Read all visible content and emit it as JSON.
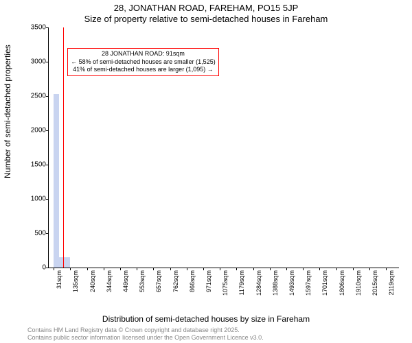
{
  "title_line1": "28, JONATHAN ROAD, FAREHAM, PO15 5JP",
  "title_line2": "Size of property relative to semi-detached houses in Fareham",
  "ylabel": "Number of semi-detached properties",
  "xlabel": "Distribution of semi-detached houses by size in Fareham",
  "footer_line1": "Contains HM Land Registry data © Crown copyright and database right 2025.",
  "footer_line2": "Contains public sector information licensed under the Open Government Licence v3.0.",
  "chart": {
    "type": "bar",
    "ylim": [
      0,
      3500
    ],
    "yticks": [
      0,
      500,
      1000,
      1500,
      2000,
      2500,
      3000,
      3500
    ],
    "xticks": [
      {
        "x": 31,
        "label": "31sqm"
      },
      {
        "x": 135,
        "label": "135sqm"
      },
      {
        "x": 240,
        "label": "240sqm"
      },
      {
        "x": 344,
        "label": "344sqm"
      },
      {
        "x": 449,
        "label": "449sqm"
      },
      {
        "x": 553,
        "label": "553sqm"
      },
      {
        "x": 657,
        "label": "657sqm"
      },
      {
        "x": 762,
        "label": "762sqm"
      },
      {
        "x": 866,
        "label": "866sqm"
      },
      {
        "x": 971,
        "label": "971sqm"
      },
      {
        "x": 1075,
        "label": "1075sqm"
      },
      {
        "x": 1179,
        "label": "1179sqm"
      },
      {
        "x": 1284,
        "label": "1284sqm"
      },
      {
        "x": 1388,
        "label": "1388sqm"
      },
      {
        "x": 1493,
        "label": "1493sqm"
      },
      {
        "x": 1597,
        "label": "1597sqm"
      },
      {
        "x": 1701,
        "label": "1701sqm"
      },
      {
        "x": 1806,
        "label": "1806sqm"
      },
      {
        "x": 1910,
        "label": "1910sqm"
      },
      {
        "x": 2015,
        "label": "2015sqm"
      },
      {
        "x": 2119,
        "label": "2119sqm"
      }
    ],
    "xlim": [
      0,
      2200
    ],
    "bars": [
      {
        "x": 31,
        "value": 2530,
        "width": 34
      },
      {
        "x": 65,
        "value": 150,
        "width": 70
      }
    ],
    "bar_color": "#c9d4f0",
    "highlight_x": 91,
    "highlight_color": "#ff0000",
    "callout": {
      "line1": "28 JONATHAN ROAD: 91sqm",
      "line2": "← 58% of semi-detached houses are smaller (1,525)",
      "line3": "41% of semi-detached houses are larger (1,095) →"
    },
    "background_color": "#ffffff",
    "title_fontsize": 13,
    "label_fontsize": 12,
    "tick_fontsize": 10
  }
}
